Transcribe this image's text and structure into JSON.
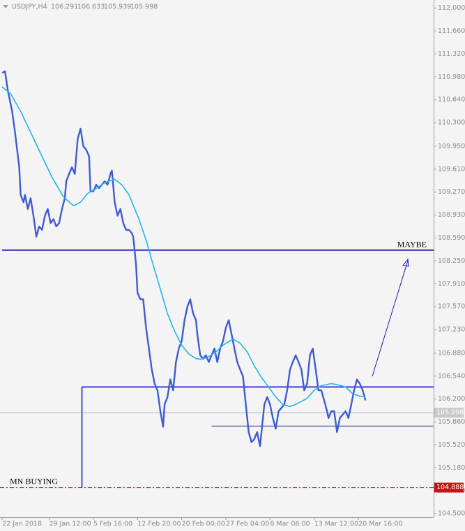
{
  "chart_data": {
    "type": "line",
    "symbol": "USDJPY,H4",
    "ohlc": [
      106.291,
      106.633,
      105.939,
      105.998
    ],
    "xlim": [
      -1.5,
      302.8
    ],
    "ylim": [
      104.45,
      112.12
    ],
    "xticks": [
      {
        "value": 0,
        "label": "22 Jan 2018"
      },
      {
        "value": 33,
        "label": "29 Jan 12:00"
      },
      {
        "value": 64,
        "label": "5 Feb 16:00"
      },
      {
        "value": 95,
        "label": "12 Feb 20:00"
      },
      {
        "value": 126,
        "label": "20 Feb 00:00"
      },
      {
        "value": 157,
        "label": "27 Feb 04:00"
      },
      {
        "value": 188,
        "label": "6 Mar 08:00"
      },
      {
        "value": 219,
        "label": "13 Mar 12:00"
      },
      {
        "value": 250,
        "label": "20 Mar 16:00"
      }
    ],
    "yticks": [
      {
        "value": 112,
        "label": "112.000"
      },
      {
        "value": 111.66,
        "label": "111.660"
      },
      {
        "value": 111.32,
        "label": "111.320"
      },
      {
        "value": 110.98,
        "label": "110.980"
      },
      {
        "value": 110.64,
        "label": "110.640"
      },
      {
        "value": 110.3,
        "label": "110.300"
      },
      {
        "value": 109.95,
        "label": "109.950"
      },
      {
        "value": 109.61,
        "label": "109.610"
      },
      {
        "value": 109.27,
        "label": "109.270"
      },
      {
        "value": 108.93,
        "label": "108.930"
      },
      {
        "value": 108.59,
        "label": "108.590"
      },
      {
        "value": 108.25,
        "label": "108.250"
      },
      {
        "value": 107.91,
        "label": "107.910"
      },
      {
        "value": 107.57,
        "label": "107.570"
      },
      {
        "value": 107.23,
        "label": "107.230"
      },
      {
        "value": 106.88,
        "label": "106.880"
      },
      {
        "value": 106.54,
        "label": "106.540"
      },
      {
        "value": 106.2,
        "label": "106.200"
      },
      {
        "value": 105.86,
        "label": "105.860"
      },
      {
        "value": 105.52,
        "label": "105.520"
      },
      {
        "value": 105.18,
        "label": "105.180"
      },
      {
        "value": 104.84,
        "label": "104.840"
      },
      {
        "value": 104.5,
        "label": "104.500"
      }
    ],
    "series": [
      {
        "color": "#3f5bd0",
        "x": [
          0,
          2,
          4,
          7,
          9,
          12,
          13,
          15,
          16,
          18,
          20,
          22,
          24,
          26,
          28,
          30,
          32,
          34,
          36,
          38,
          40,
          42,
          44,
          45,
          47,
          49,
          51,
          53,
          55,
          57,
          59,
          61,
          62,
          64,
          66,
          68,
          70,
          72,
          74,
          76,
          77,
          79,
          81,
          83,
          85,
          87,
          89,
          91,
          92,
          94,
          95,
          97,
          99,
          101,
          103,
          105,
          107,
          109,
          111,
          113,
          114,
          116,
          118,
          120,
          122,
          124,
          126,
          128,
          130,
          132,
          134,
          136,
          137,
          139,
          141,
          143,
          145,
          147,
          149,
          151,
          153,
          155,
          157,
          159,
          161,
          163,
          165,
          167,
          169,
          171,
          173,
          175,
          177,
          179,
          181,
          182,
          184,
          186,
          188,
          190,
          192,
          194,
          196,
          198,
          200,
          202,
          204,
          206,
          208,
          210,
          212,
          214,
          216,
          218,
          220,
          222,
          224,
          226,
          228,
          229,
          231,
          233,
          235,
          237,
          239,
          241,
          243,
          245,
          247,
          249,
          251,
          253,
          255
        ],
        "values": [
          111.04,
          111.06,
          110.78,
          110.47,
          110.16,
          109.64,
          109.23,
          109.12,
          109.23,
          109.02,
          109.18,
          108.92,
          108.61,
          108.76,
          108.71,
          108.92,
          109.02,
          108.81,
          108.87,
          108.76,
          108.81,
          109.02,
          109.18,
          109.43,
          109.54,
          109.64,
          109.54,
          110.06,
          110.21,
          109.95,
          109.9,
          109.8,
          109.28,
          109.28,
          109.38,
          109.33,
          109.38,
          109.43,
          109.38,
          109.54,
          109.59,
          109.12,
          108.92,
          109.02,
          108.81,
          108.71,
          108.71,
          108.66,
          108.61,
          108.19,
          107.78,
          107.68,
          107.68,
          107.26,
          106.95,
          106.64,
          106.43,
          106.33,
          106.02,
          105.79,
          106.12,
          106.23,
          106.49,
          106.33,
          106.75,
          106.95,
          107.06,
          107.37,
          107.57,
          107.68,
          107.47,
          107.37,
          107.16,
          106.85,
          106.8,
          106.85,
          106.75,
          106.85,
          106.95,
          106.75,
          106.95,
          107.06,
          107.26,
          107.37,
          107.16,
          106.95,
          106.75,
          106.64,
          106.54,
          106.12,
          105.71,
          105.56,
          105.61,
          105.71,
          105.5,
          105.71,
          106.12,
          106.23,
          106.12,
          105.92,
          105.76,
          106.02,
          106.07,
          106.12,
          106.33,
          106.64,
          106.75,
          106.85,
          106.75,
          106.64,
          106.33,
          106.43,
          106.85,
          106.95,
          106.64,
          106.33,
          106.33,
          106.18,
          106.02,
          105.92,
          106.02,
          106.02,
          105.71,
          105.92,
          105.97,
          106.02,
          105.92,
          106.12,
          106.33,
          106.49,
          106.43,
          106.33,
          106.18
        ]
      },
      {
        "color": "#22b4ea",
        "x": [
          0,
          6,
          13,
          21,
          28,
          35,
          43,
          50,
          55,
          60,
          65,
          72,
          79,
          84,
          89,
          96,
          101,
          106,
          111,
          116,
          121,
          126,
          131,
          136,
          140,
          145,
          150,
          155,
          162,
          167,
          172,
          177,
          182,
          187,
          192,
          197,
          202,
          206,
          214,
          219,
          224,
          231,
          236,
          241,
          246,
          250,
          255
        ],
        "values": [
          110.83,
          110.73,
          110.47,
          110.11,
          109.8,
          109.49,
          109.2,
          109.07,
          109.12,
          109.25,
          109.31,
          109.41,
          109.46,
          109.38,
          109.23,
          108.87,
          108.56,
          108.19,
          107.83,
          107.47,
          107.21,
          107.0,
          106.87,
          106.8,
          106.79,
          106.83,
          106.9,
          107.0,
          107.09,
          107.03,
          106.9,
          106.69,
          106.52,
          106.38,
          106.23,
          106.12,
          106.09,
          106.12,
          106.21,
          106.33,
          106.4,
          106.43,
          106.41,
          106.38,
          106.28,
          106.25,
          106.23
        ]
      }
    ],
    "levels": [
      {
        "value": 108.41,
        "label": "MAYBE",
        "color": "#1a1aa8"
      },
      {
        "value": 106.38,
        "from": 56,
        "color": "#1a1ad0"
      },
      {
        "value": 105.8,
        "from": 147,
        "color": "#1a1a8a"
      }
    ],
    "buy_level": {
      "value": 104.888,
      "label": "MN BUYING",
      "color": "#cc1111"
    },
    "last_price_color": "#8899bb"
  }
}
